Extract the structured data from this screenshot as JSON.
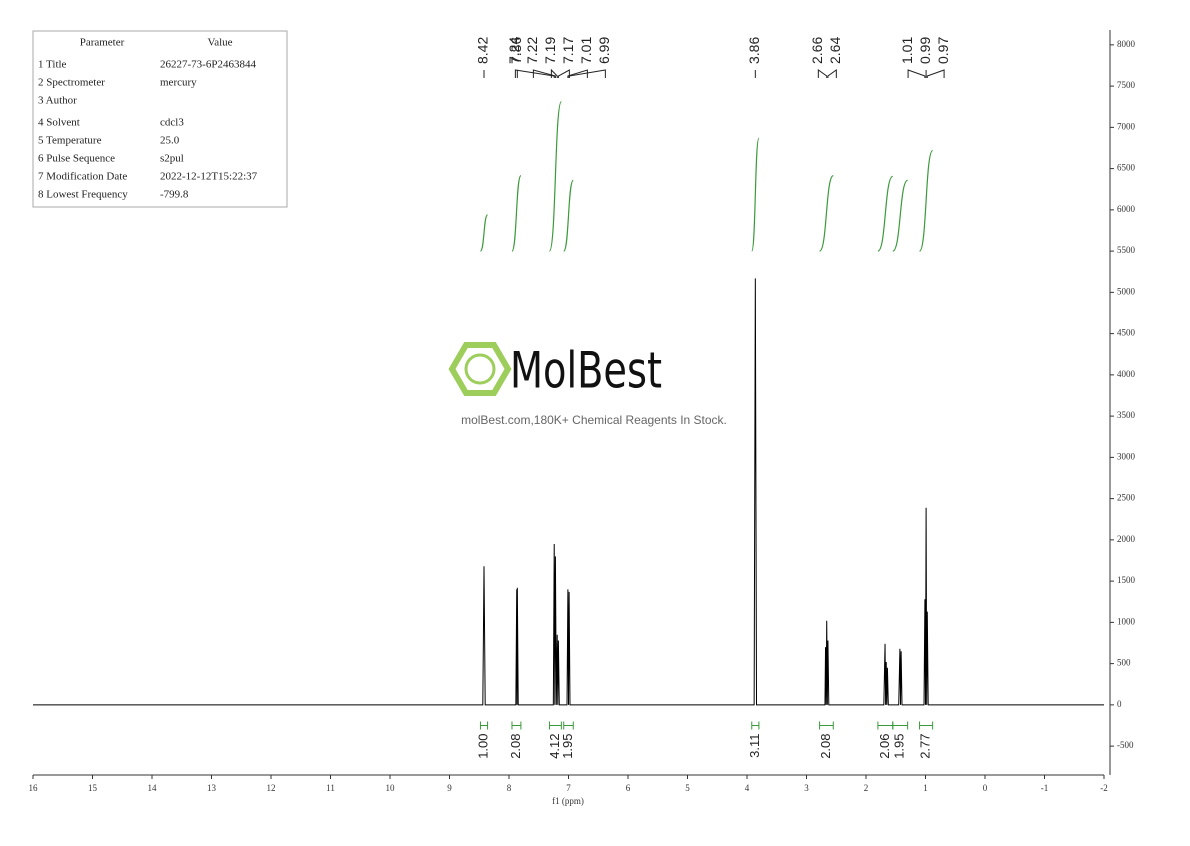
{
  "chart_data": {
    "type": "nmr",
    "xlabel": "f1 (ppm)",
    "xlim": [
      16,
      -2
    ],
    "xticks": [
      16,
      15,
      14,
      13,
      12,
      11,
      10,
      9,
      8,
      7,
      6,
      5,
      4,
      3,
      2,
      1,
      0,
      -1,
      -2
    ],
    "ylim": [
      -850,
      8180
    ],
    "yticks": [
      -500,
      0,
      500,
      1000,
      1500,
      2000,
      2500,
      3000,
      3500,
      4000,
      4500,
      5000,
      5500,
      6000,
      6500,
      7000,
      7500,
      8000
    ],
    "color": "#000000",
    "x": [
      16,
      8.44,
      8.42,
      8.4,
      7.885,
      7.87,
      7.865,
      7.86,
      7.845,
      7.255,
      7.24,
      7.23,
      7.22,
      7.205,
      7.19,
      7.18,
      7.17,
      7.155,
      7.025,
      7.01,
      7.0,
      6.99,
      6.975,
      3.88,
      3.86,
      3.84,
      2.69,
      2.68,
      2.67,
      2.66,
      2.65,
      2.64,
      2.625,
      1.7,
      1.68,
      1.67,
      1.66,
      1.65,
      1.64,
      1.625,
      1.45,
      1.43,
      1.42,
      1.41,
      1.395,
      1.025,
      1.01,
      1.0,
      0.99,
      0.98,
      0.97,
      0.955,
      -2
    ],
    "values": [
      0,
      0,
      1680,
      0,
      0,
      1400,
      0,
      1420,
      0,
      0,
      1950,
      0,
      1800,
      0,
      850,
      0,
      780,
      0,
      0,
      1400,
      0,
      1370,
      0,
      0,
      5170,
      0,
      0,
      700,
      0,
      1020,
      0,
      780,
      0,
      0,
      740,
      0,
      520,
      0,
      450,
      0,
      0,
      680,
      0,
      650,
      0,
      0,
      1280,
      0,
      2390,
      0,
      1130,
      0,
      0
    ],
    "peak_labels": [
      8.42,
      7.86,
      7.24,
      7.22,
      7.19,
      7.17,
      7.01,
      6.99,
      3.86,
      2.66,
      2.64,
      1.01,
      0.99,
      0.97
    ],
    "integral_color": "#3a9a3a",
    "integrals": [
      {
        "value": 1,
        "label": "1.00",
        "range": [
          8.48,
          8.36
        ]
      },
      {
        "value": 2.08,
        "label": "2.08",
        "range": [
          7.95,
          7.8
        ]
      },
      {
        "value": 4.12,
        "label": "4.12",
        "range": [
          7.32,
          7.12
        ]
      },
      {
        "value": 1.95,
        "label": "1.95",
        "range": [
          7.08,
          6.92
        ]
      },
      {
        "value": 3.11,
        "label": "3.11",
        "range": [
          3.92,
          3.8
        ]
      },
      {
        "value": 2.08,
        "label": "2.08",
        "range": [
          2.78,
          2.55
        ]
      },
      {
        "value": 2.06,
        "label": "2.06",
        "range": [
          1.8,
          1.55
        ]
      },
      {
        "value": 1.95,
        "label": "1.95",
        "range": [
          1.55,
          1.3
        ]
      },
      {
        "value": 2.77,
        "label": "2.77",
        "range": [
          1.1,
          0.88
        ]
      }
    ]
  },
  "table": {
    "header": [
      "Parameter",
      "Value"
    ],
    "rows": [
      [
        "1 Title",
        "26227-73-6P2463844"
      ],
      [
        "2 Spectrometer",
        "mercury"
      ],
      [
        "3 Author"
      ],
      [
        "4 Solvent",
        "cdcl3"
      ],
      [
        "5 Temperature",
        "25.0"
      ],
      [
        "6 Pulse Sequence",
        "s2pul"
      ],
      [
        "7 Modification Date",
        "2022-12-12T15:22:37"
      ],
      [
        "8 Lowest Frequency",
        "-799.8"
      ]
    ]
  },
  "watermark": {
    "title": "MolBest",
    "subtitle": "molBest.com,180K+ Chemical Reagents In Stock."
  }
}
